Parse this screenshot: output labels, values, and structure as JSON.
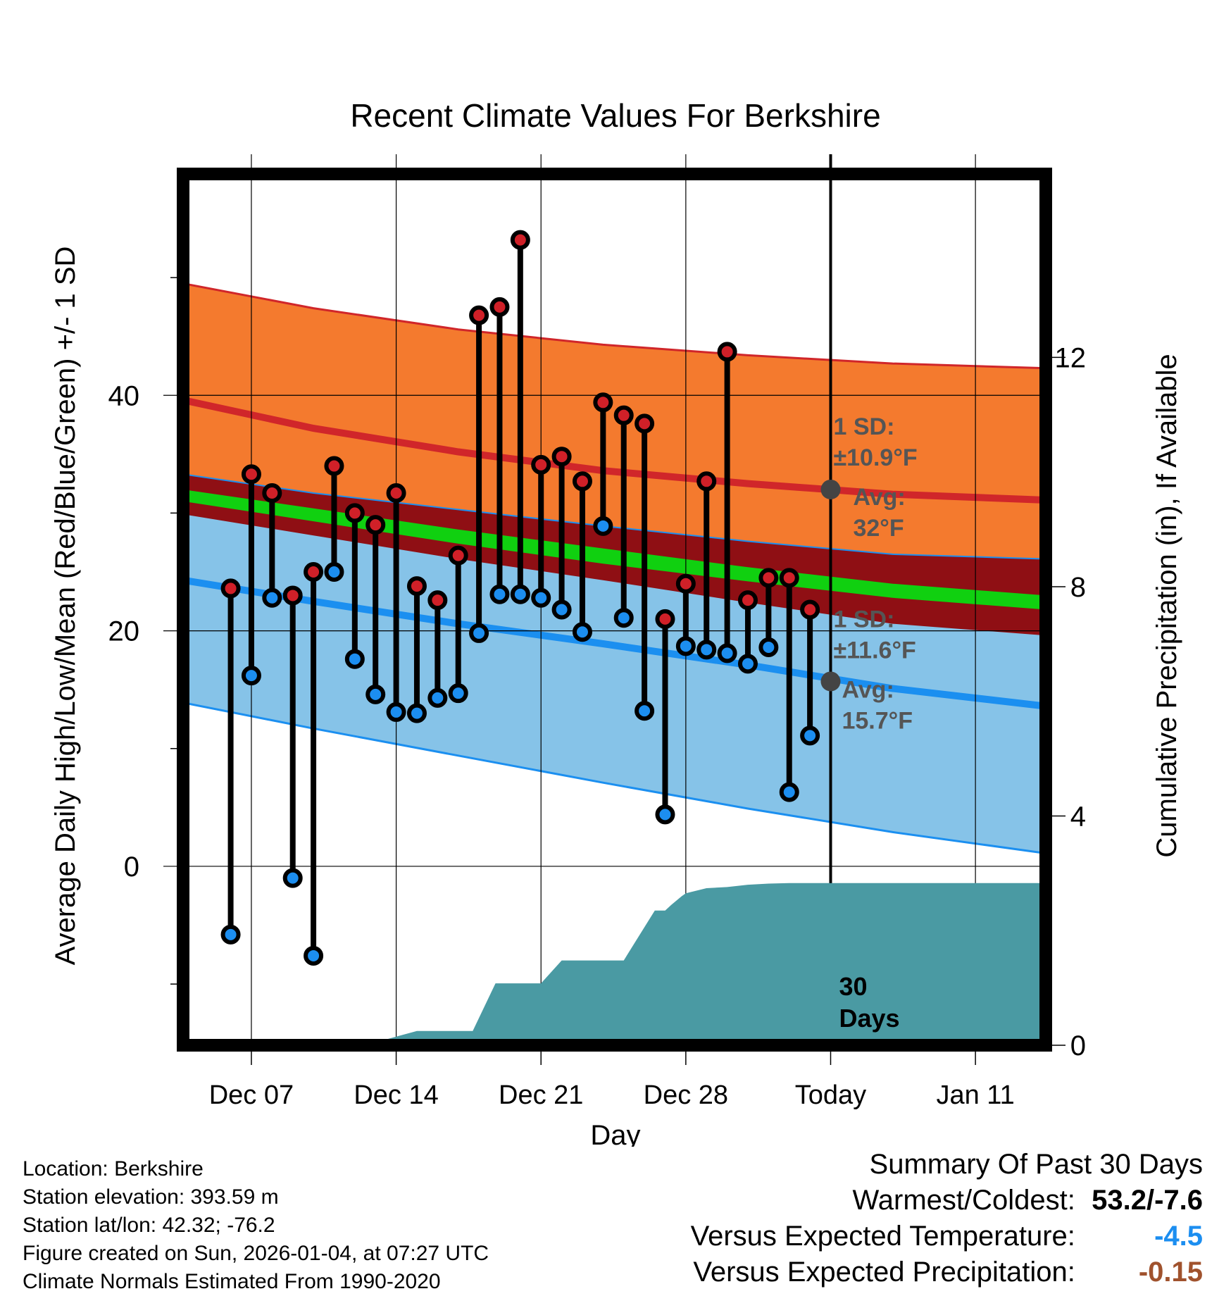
{
  "chart_data": {
    "type": "line",
    "title": "Recent Climate Values For Berkshire",
    "xlabel": "Day",
    "ylabel": "Average Daily High/Low/Mean (Red/Blue/Green) +/- 1 SD",
    "y2label": "Cumulative Precipitation (in), If Available",
    "x_range": [
      -1.3,
      40.4
    ],
    "ylim": [
      -15.2,
      58.8
    ],
    "y2lim": [
      0,
      15.2
    ],
    "y_ticks": [
      0,
      20,
      40
    ],
    "y_minor_ticks": [
      -10,
      10,
      30,
      50
    ],
    "y2_ticks": [
      0,
      4,
      8,
      12
    ],
    "x_ticks": [
      {
        "day": 2,
        "label": "Dec 07"
      },
      {
        "day": 9,
        "label": "Dec 14"
      },
      {
        "day": 16,
        "label": "Dec 21"
      },
      {
        "day": 23,
        "label": "Dec 28"
      },
      {
        "day": 30,
        "label": "Today"
      },
      {
        "day": 37,
        "label": "Jan 11"
      }
    ],
    "today_day": 30,
    "today_label": "30\nDays",
    "normal_days": [
      -1.3,
      5,
      12,
      19,
      26,
      33,
      40.4
    ],
    "normal_high_upper": [
      49.5,
      47.4,
      45.6,
      44.3,
      43.4,
      42.7,
      42.3
    ],
    "normal_high_mean": [
      39.6,
      37.2,
      35.2,
      33.6,
      32.5,
      31.6,
      31.1
    ],
    "normal_mean_upper": [
      32.0,
      30.4,
      28.6,
      27.0,
      25.4,
      24.0,
      23.0
    ],
    "normal_mean_lower": [
      31.0,
      29.3,
      27.4,
      25.7,
      24.2,
      22.8,
      21.8
    ],
    "normal_low_mean": [
      24.3,
      22.5,
      20.6,
      18.9,
      17.1,
      15.1,
      13.6
    ],
    "normal_low_upper_meanline": [
      33.3,
      31.7,
      30.3,
      28.9,
      27.6,
      26.5,
      26.1
    ],
    "normal_low_lower": [
      13.9,
      11.7,
      9.4,
      7.1,
      4.9,
      2.9,
      1.1
    ],
    "normal_high_lower": [
      29.9,
      28.1,
      26.1,
      24.3,
      22.4,
      20.6,
      19.6
    ],
    "high_sd_label": "1 SD:\n±10.9°F",
    "high_avg_label": "Avg:\n32°F",
    "high_avg_value": 32.0,
    "low_sd_label": "1 SD:\n±11.6°F",
    "low_avg_label": "Avg:\n15.7°F",
    "low_avg_value": 15.7,
    "days": [
      1,
      2,
      3,
      4,
      5,
      6,
      7,
      8,
      9,
      10,
      11,
      12,
      13,
      14,
      15,
      16,
      17,
      18,
      19,
      20,
      21,
      22,
      23,
      24,
      25,
      26,
      27,
      28,
      29
    ],
    "highs": [
      23.6,
      33.3,
      31.7,
      23.0,
      25.0,
      34.0,
      30.0,
      29.0,
      31.7,
      23.8,
      22.6,
      26.4,
      46.8,
      47.5,
      53.2,
      34.1,
      34.8,
      32.7,
      39.4,
      38.3,
      37.6,
      21.0,
      24.0,
      32.7,
      43.7,
      22.6,
      24.5,
      24.5,
      21.8
    ],
    "lows": [
      -5.8,
      16.2,
      22.8,
      -1.0,
      -7.6,
      25.0,
      17.6,
      14.6,
      13.1,
      13.0,
      14.3,
      14.7,
      19.8,
      23.1,
      23.1,
      22.8,
      21.8,
      19.9,
      28.9,
      21.1,
      13.2,
      4.4,
      18.7,
      18.4,
      18.1,
      17.2,
      18.6,
      6.3,
      11.1
    ],
    "precip_days": [
      -1.3,
      7.5,
      9,
      10,
      11.5,
      12.7,
      13.8,
      15,
      16,
      17,
      18.5,
      20,
      21.5,
      22,
      22.3,
      22.8,
      23,
      24,
      25,
      26,
      27,
      28,
      40.4
    ],
    "precip_values": [
      0,
      0,
      0.15,
      0.25,
      0.25,
      0.25,
      1.08,
      1.08,
      1.08,
      1.48,
      1.48,
      1.48,
      2.35,
      2.35,
      2.45,
      2.6,
      2.65,
      2.74,
      2.76,
      2.8,
      2.82,
      2.83,
      2.83
    ],
    "colors": {
      "high_band": "#f47a2e",
      "high_line": "#d0262a",
      "mean_band": "#8f0f14",
      "mean_line": "#10d010",
      "low_band": "#86c3e8",
      "low_line": "#1b8ff0",
      "precip": "#4a9aa3",
      "high_dot": "#d02028",
      "low_dot": "#1c8ef0",
      "annotation": "#555555",
      "vs_temp": "#1c8ef0",
      "vs_precip": "#a0522d"
    }
  },
  "footer": {
    "location": "Location: Berkshire",
    "elevation": "Station elevation: 393.59 m",
    "latlon": "Station lat/lon: 42.32; -76.2",
    "created": "Figure created on Sun, 2026-01-04, at 07:27 UTC",
    "normals": "Climate Normals Estimated From 1990-2020"
  },
  "summary": {
    "title": "Summary Of Past 30 Days",
    "warmest_label": "Warmest/Coldest:",
    "warmest_value": "53.2/-7.6",
    "vs_temp_label": "Versus Expected Temperature:",
    "vs_temp_value": "-4.5",
    "vs_precip_label": "Versus Expected Precipitation:",
    "vs_precip_value": "-0.15"
  }
}
